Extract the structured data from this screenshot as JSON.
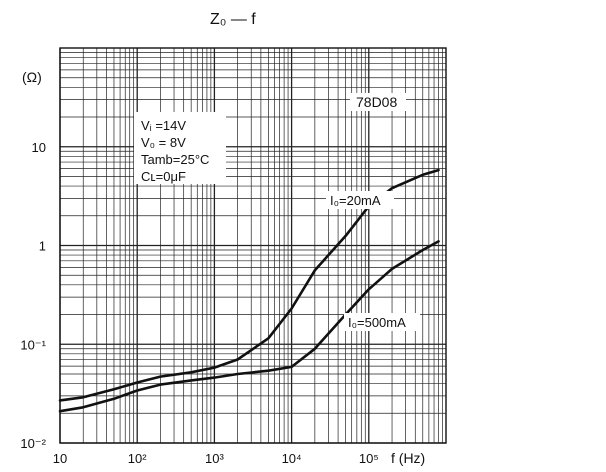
{
  "chart_data": {
    "type": "line",
    "title": "Z₀ — f",
    "device": "78D08",
    "conditions": [
      "Vᵢ =14V",
      "V₀ = 8V",
      "Tamb=25°C",
      "Cʟ=0μF"
    ],
    "ylabel": "(Ω)",
    "xlabel": "f (Hz)",
    "xscale": "log",
    "yscale": "log",
    "xlim": [
      10,
      1000000
    ],
    "ylim": [
      0.01,
      100
    ],
    "grid": true,
    "x_tick_labels": [
      {
        "value": 10,
        "label": "10"
      },
      {
        "value": 100,
        "label": "10²"
      },
      {
        "value": 1000,
        "label": "10³"
      },
      {
        "value": 10000,
        "label": "10⁴"
      },
      {
        "value": 100000,
        "label": "10⁵"
      }
    ],
    "y_tick_labels": [
      {
        "value": 10,
        "label": "10"
      },
      {
        "value": 1,
        "label": "1"
      },
      {
        "value": 0.1,
        "label": "10⁻¹"
      },
      {
        "value": 0.01,
        "label": "10⁻²"
      }
    ],
    "series": [
      {
        "name": "I₀=20mA",
        "x": [
          10,
          20,
          50,
          100,
          200,
          500,
          1000,
          2000,
          5000,
          10000,
          20000,
          50000,
          100000,
          200000,
          500000,
          800000
        ],
        "y": [
          0.027,
          0.029,
          0.035,
          0.041,
          0.047,
          0.052,
          0.058,
          0.07,
          0.115,
          0.23,
          0.56,
          1.25,
          2.5,
          3.8,
          5.2,
          5.8
        ]
      },
      {
        "name": "I₀=500mA",
        "x": [
          10,
          20,
          50,
          100,
          200,
          500,
          1000,
          2000,
          5000,
          10000,
          20000,
          50000,
          100000,
          200000,
          500000,
          800000
        ],
        "y": [
          0.021,
          0.023,
          0.028,
          0.034,
          0.039,
          0.043,
          0.046,
          0.05,
          0.054,
          0.059,
          0.09,
          0.2,
          0.36,
          0.58,
          0.9,
          1.1
        ]
      }
    ]
  }
}
